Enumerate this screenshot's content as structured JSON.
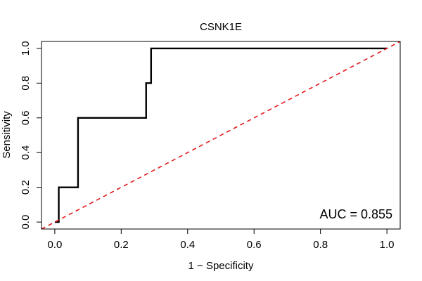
{
  "chart_data": {
    "type": "line",
    "title": "CSNK1E",
    "xlabel": "1 − Specificity",
    "ylabel": "Sensitivity",
    "xlim": [
      -0.04,
      1.04
    ],
    "ylim": [
      -0.04,
      1.04
    ],
    "x_ticks": [
      0.0,
      0.2,
      0.4,
      0.6,
      0.8,
      1.0
    ],
    "x_tick_labels": [
      "0.0",
      "0.2",
      "0.4",
      "0.6",
      "0.8",
      "1.0"
    ],
    "y_ticks": [
      0.0,
      0.2,
      0.4,
      0.6,
      0.8,
      1.0
    ],
    "y_tick_labels": [
      "0.0",
      "0.2",
      "0.4",
      "0.6",
      "0.8",
      "1.0"
    ],
    "grid": false,
    "series": [
      {
        "color": "#000000",
        "style": "solid",
        "x": [
          0.0,
          0.012,
          0.012,
          0.07,
          0.07,
          0.275,
          0.275,
          0.29,
          0.29,
          1.0
        ],
        "y": [
          0.0,
          0.0,
          0.2,
          0.2,
          0.6,
          0.6,
          0.8,
          0.8,
          1.0,
          1.0
        ]
      },
      {
        "color": "#e41a1c",
        "style": "dashed",
        "x": [
          -0.04,
          1.04
        ],
        "y": [
          -0.04,
          1.04
        ]
      }
    ],
    "annotations": [
      {
        "text": "AUC = 0.855",
        "position": "bottom-right"
      }
    ]
  }
}
